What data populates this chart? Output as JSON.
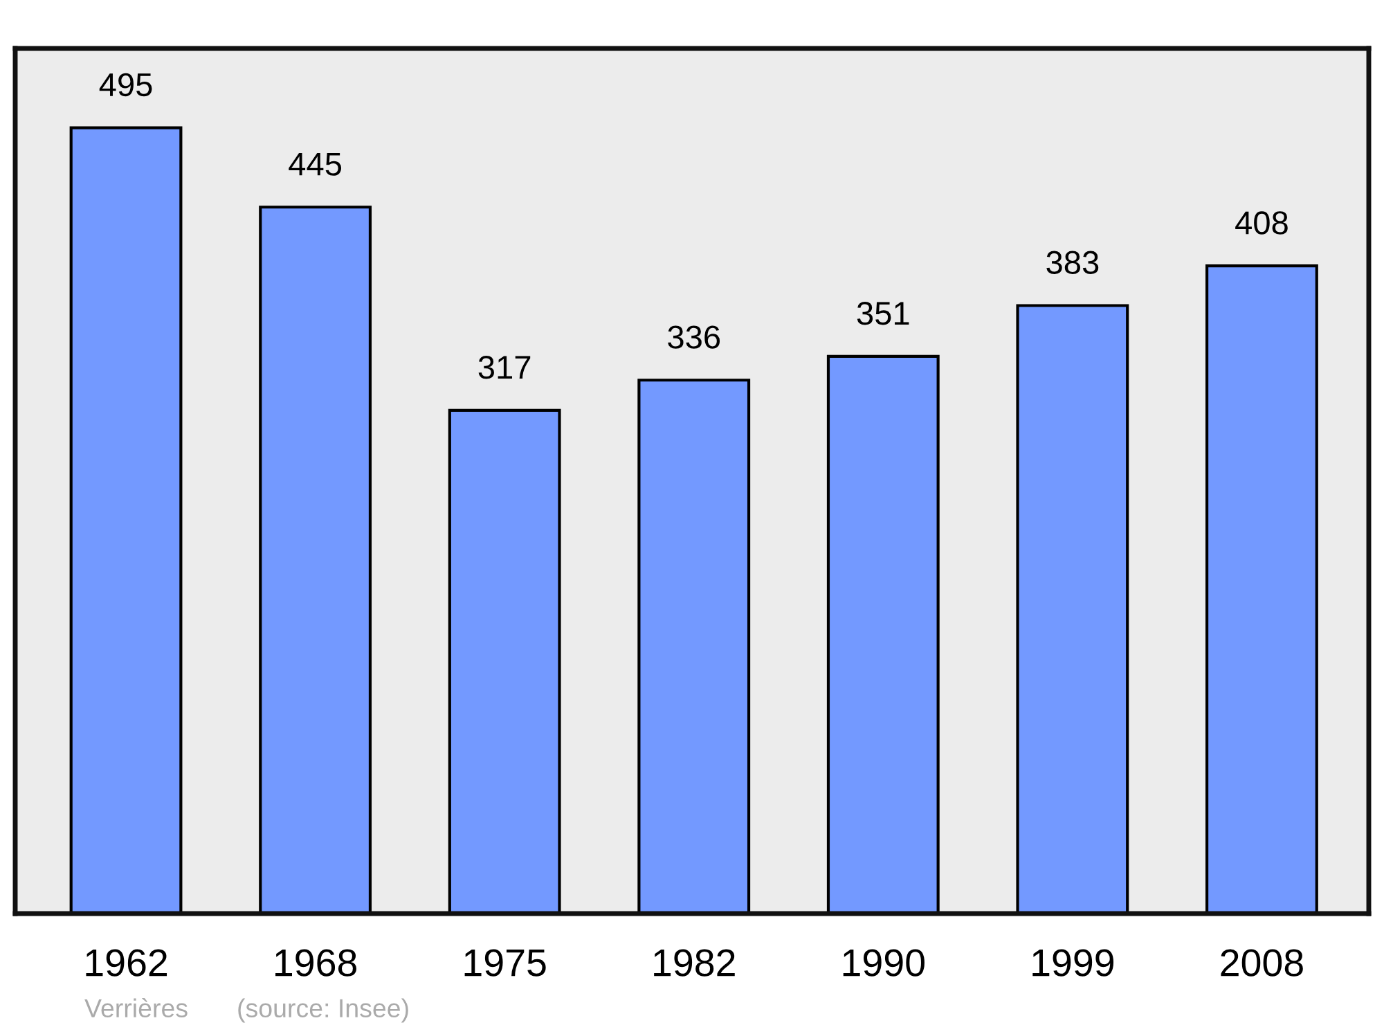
{
  "chart_data": {
    "type": "bar",
    "categories": [
      "1962",
      "1968",
      "1975",
      "1982",
      "1990",
      "1999",
      "2008"
    ],
    "values": [
      495,
      445,
      317,
      336,
      351,
      383,
      408
    ],
    "color": "#7399ff",
    "data_labels": true,
    "ylim": [
      0,
      545
    ],
    "tick_labels": "x",
    "annotations": [
      "Verrières",
      "(source: Insee)"
    ]
  }
}
